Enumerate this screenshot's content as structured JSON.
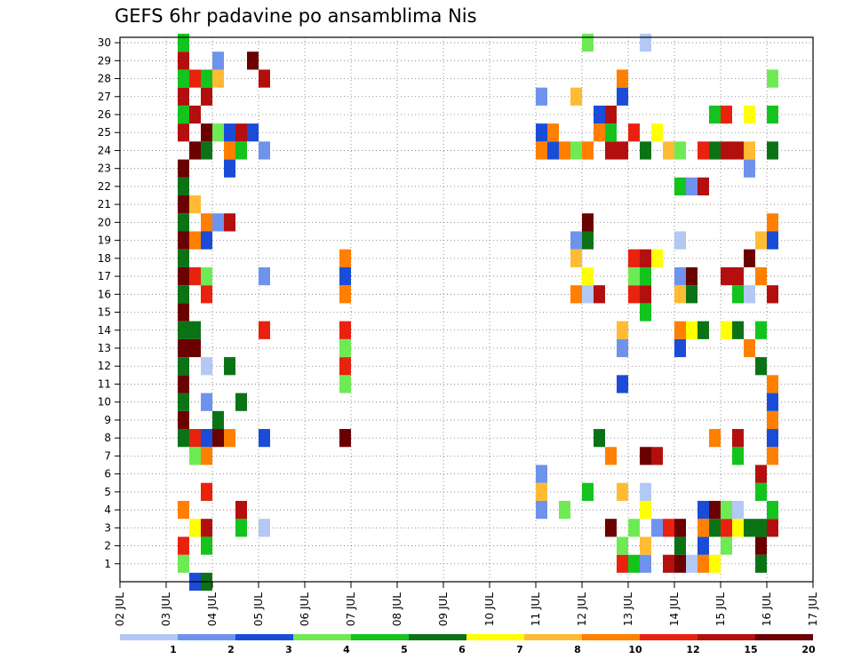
{
  "chart_data": {
    "type": "heatmap",
    "title": "GEFS 6hr padavine po ansamblima Nis",
    "xlabel": "",
    "ylabel": "",
    "x_tick_labels": [
      "02 JUL",
      "03 JUL",
      "04 JUL",
      "05 JUL",
      "06 JUL",
      "07 JUL",
      "08 JUL",
      "09 JUL",
      "10 JUL",
      "11 JUL",
      "12 JUL",
      "13 JUL",
      "14 JUL",
      "15 JUL",
      "16 JUL",
      "17 JUL"
    ],
    "y_tick_labels": [
      "1",
      "2",
      "3",
      "4",
      "5",
      "6",
      "7",
      "8",
      "9",
      "10",
      "11",
      "12",
      "13",
      "14",
      "15",
      "16",
      "17",
      "18",
      "19",
      "20",
      "21",
      "22",
      "23",
      "24",
      "25",
      "26",
      "27",
      "28",
      "29",
      "30"
    ],
    "y_range": [
      0,
      30
    ],
    "time_steps_per_day": 4,
    "grid": true,
    "legend_position": "bottom",
    "color_scale": {
      "labels": [
        "1",
        "2",
        "3",
        "4",
        "5",
        "6",
        "7",
        "8",
        "10",
        "12",
        "15",
        "20"
      ],
      "colors": [
        "#b3c8f5",
        "#6f93ec",
        "#1a4cd8",
        "#6eea55",
        "#14c31e",
        "#0b7316",
        "#ffff00",
        "#ffbb33",
        "#ff7f00",
        "#e8220f",
        "#b30f0f",
        "#6b0000"
      ]
    },
    "cells": [
      [
        1,
        1,
        1
      ],
      [
        1,
        1,
        2
      ],
      [
        1,
        1,
        4
      ],
      [
        1,
        1,
        8
      ],
      [
        1,
        1,
        9
      ],
      [
        1,
        1,
        10
      ],
      [
        1,
        1,
        11
      ],
      [
        1,
        1,
        12
      ],
      [
        1,
        1,
        13
      ],
      [
        1,
        1,
        14
      ],
      [
        1,
        1,
        15
      ],
      [
        1,
        1,
        16
      ],
      [
        1,
        1,
        17
      ],
      [
        1,
        1,
        18
      ],
      [
        1,
        1,
        19
      ],
      [
        1,
        1,
        20
      ],
      [
        1,
        1,
        21
      ],
      [
        1,
        1,
        22
      ],
      [
        1,
        1,
        23
      ],
      [
        1,
        1,
        25
      ],
      [
        1,
        1,
        26
      ],
      [
        1,
        1,
        27
      ],
      [
        1,
        1,
        28
      ],
      [
        1,
        1,
        29
      ],
      [
        1,
        1,
        30
      ],
      [
        1,
        2,
        0
      ],
      [
        1,
        2,
        3
      ],
      [
        1,
        2,
        7
      ],
      [
        1,
        2,
        8
      ],
      [
        1,
        2,
        13
      ],
      [
        1,
        2,
        14
      ],
      [
        1,
        2,
        17
      ],
      [
        1,
        2,
        19
      ],
      [
        1,
        2,
        21
      ],
      [
        1,
        2,
        24
      ],
      [
        1,
        2,
        26
      ],
      [
        1,
        2,
        28
      ],
      [
        1,
        3,
        0
      ],
      [
        1,
        3,
        2
      ],
      [
        1,
        3,
        3
      ],
      [
        1,
        3,
        5
      ],
      [
        1,
        3,
        7
      ],
      [
        1,
        3,
        8
      ],
      [
        1,
        3,
        10
      ],
      [
        1,
        3,
        12
      ],
      [
        1,
        3,
        16
      ],
      [
        1,
        3,
        17
      ],
      [
        1,
        3,
        19
      ],
      [
        1,
        3,
        20
      ],
      [
        1,
        3,
        24
      ],
      [
        1,
        3,
        25
      ],
      [
        1,
        3,
        27
      ],
      [
        1,
        3,
        28
      ],
      [
        2,
        0,
        8
      ],
      [
        2,
        0,
        9
      ],
      [
        2,
        0,
        20
      ],
      [
        2,
        0,
        25
      ],
      [
        2,
        0,
        28
      ],
      [
        2,
        0,
        29
      ],
      [
        2,
        1,
        8
      ],
      [
        2,
        1,
        12
      ],
      [
        2,
        1,
        20
      ],
      [
        2,
        1,
        23
      ],
      [
        2,
        1,
        24
      ],
      [
        2,
        1,
        25
      ],
      [
        2,
        2,
        3
      ],
      [
        2,
        2,
        4
      ],
      [
        2,
        2,
        10
      ],
      [
        2,
        2,
        24
      ],
      [
        2,
        2,
        25
      ],
      [
        2,
        3,
        25
      ],
      [
        2,
        3,
        29
      ],
      [
        3,
        0,
        3
      ],
      [
        3,
        0,
        8
      ],
      [
        3,
        0,
        14
      ],
      [
        3,
        0,
        17
      ],
      [
        3,
        0,
        24
      ],
      [
        3,
        0,
        28
      ],
      [
        4,
        3,
        8
      ],
      [
        4,
        3,
        11
      ],
      [
        4,
        3,
        12
      ],
      [
        4,
        3,
        13
      ],
      [
        4,
        3,
        14
      ],
      [
        4,
        3,
        16
      ],
      [
        4,
        3,
        17
      ],
      [
        4,
        3,
        18
      ],
      [
        9,
        0,
        4
      ],
      [
        9,
        0,
        5
      ],
      [
        9,
        0,
        6
      ],
      [
        9,
        0,
        24
      ],
      [
        9,
        0,
        25
      ],
      [
        9,
        0,
        27
      ],
      [
        9,
        1,
        24
      ],
      [
        9,
        1,
        25
      ],
      [
        9,
        2,
        4
      ],
      [
        9,
        2,
        24
      ],
      [
        9,
        3,
        16
      ],
      [
        9,
        3,
        18
      ],
      [
        9,
        3,
        19
      ],
      [
        9,
        3,
        24
      ],
      [
        9,
        3,
        27
      ],
      [
        10,
        0,
        5
      ],
      [
        10,
        0,
        16
      ],
      [
        10,
        0,
        17
      ],
      [
        10,
        0,
        19
      ],
      [
        10,
        0,
        20
      ],
      [
        10,
        0,
        24
      ],
      [
        10,
        0,
        30
      ],
      [
        10,
        1,
        8
      ],
      [
        10,
        1,
        16
      ],
      [
        10,
        1,
        25
      ],
      [
        10,
        1,
        26
      ],
      [
        10,
        2,
        3
      ],
      [
        10,
        2,
        7
      ],
      [
        10,
        2,
        24
      ],
      [
        10,
        2,
        25
      ],
      [
        10,
        2,
        26
      ],
      [
        10,
        3,
        1
      ],
      [
        10,
        3,
        2
      ],
      [
        10,
        3,
        5
      ],
      [
        10,
        3,
        11
      ],
      [
        10,
        3,
        13
      ],
      [
        10,
        3,
        14
      ],
      [
        10,
        3,
        24
      ],
      [
        10,
        3,
        27
      ],
      [
        10,
        3,
        28
      ],
      [
        11,
        0,
        1
      ],
      [
        11,
        0,
        3
      ],
      [
        11,
        0,
        16
      ],
      [
        11,
        0,
        17
      ],
      [
        11,
        0,
        18
      ],
      [
        11,
        0,
        25
      ],
      [
        11,
        1,
        1
      ],
      [
        11,
        1,
        2
      ],
      [
        11,
        1,
        4
      ],
      [
        11,
        1,
        5
      ],
      [
        11,
        1,
        7
      ],
      [
        11,
        1,
        15
      ],
      [
        11,
        1,
        16
      ],
      [
        11,
        1,
        17
      ],
      [
        11,
        1,
        18
      ],
      [
        11,
        1,
        24
      ],
      [
        11,
        1,
        30
      ],
      [
        11,
        2,
        3
      ],
      [
        11,
        2,
        7
      ],
      [
        11,
        2,
        18
      ],
      [
        11,
        2,
        25
      ],
      [
        11,
        3,
        1
      ],
      [
        11,
        3,
        3
      ],
      [
        11,
        3,
        24
      ],
      [
        12,
        0,
        1
      ],
      [
        12,
        0,
        2
      ],
      [
        12,
        0,
        3
      ],
      [
        12,
        0,
        13
      ],
      [
        12,
        0,
        14
      ],
      [
        12,
        0,
        16
      ],
      [
        12,
        0,
        17
      ],
      [
        12,
        0,
        19
      ],
      [
        12,
        0,
        22
      ],
      [
        12,
        0,
        24
      ],
      [
        12,
        1,
        1
      ],
      [
        12,
        1,
        14
      ],
      [
        12,
        1,
        16
      ],
      [
        12,
        1,
        17
      ],
      [
        12,
        1,
        22
      ],
      [
        12,
        2,
        1
      ],
      [
        12,
        2,
        2
      ],
      [
        12,
        2,
        3
      ],
      [
        12,
        2,
        4
      ],
      [
        12,
        2,
        14
      ],
      [
        12,
        2,
        22
      ],
      [
        12,
        2,
        24
      ],
      [
        12,
        3,
        1
      ],
      [
        12,
        3,
        3
      ],
      [
        12,
        3,
        4
      ],
      [
        12,
        3,
        8
      ],
      [
        12,
        3,
        24
      ],
      [
        12,
        3,
        26
      ],
      [
        13,
        0,
        2
      ],
      [
        13,
        0,
        3
      ],
      [
        13,
        0,
        4
      ],
      [
        13,
        0,
        14
      ],
      [
        13,
        0,
        17
      ],
      [
        13,
        0,
        24
      ],
      [
        13,
        0,
        26
      ],
      [
        13,
        1,
        3
      ],
      [
        13,
        1,
        4
      ],
      [
        13,
        1,
        7
      ],
      [
        13,
        1,
        8
      ],
      [
        13,
        1,
        14
      ],
      [
        13,
        1,
        16
      ],
      [
        13,
        1,
        17
      ],
      [
        13,
        1,
        24
      ],
      [
        13,
        2,
        3
      ],
      [
        13,
        2,
        13
      ],
      [
        13,
        2,
        16
      ],
      [
        13,
        2,
        18
      ],
      [
        13,
        2,
        23
      ],
      [
        13,
        2,
        24
      ],
      [
        13,
        2,
        26
      ],
      [
        13,
        3,
        1
      ],
      [
        13,
        3,
        2
      ],
      [
        13,
        3,
        3
      ],
      [
        13,
        3,
        5
      ],
      [
        13,
        3,
        6
      ],
      [
        13,
        3,
        12
      ],
      [
        13,
        3,
        14
      ],
      [
        13,
        3,
        17
      ],
      [
        13,
        3,
        19
      ],
      [
        14,
        0,
        3
      ],
      [
        14,
        0,
        4
      ],
      [
        14,
        0,
        7
      ],
      [
        14,
        0,
        8
      ],
      [
        14,
        0,
        9
      ],
      [
        14,
        0,
        10
      ],
      [
        14,
        0,
        11
      ],
      [
        14,
        0,
        16
      ],
      [
        14,
        0,
        19
      ],
      [
        14,
        0,
        20
      ],
      [
        14,
        0,
        24
      ],
      [
        14,
        0,
        26
      ],
      [
        14,
        0,
        28
      ]
    ]
  },
  "cells_meta": {
    "format": "[day_index, quarter_of_day, y_value]",
    "colors_by_y": {
      "1": "cyc:5,10,9,5,3,8,4,5,6,12,11,2,3,7,1,1,2,6,3,2,1,4,9,8,1,2,1,1,2,3,2",
      "note": ""
    }
  }
}
